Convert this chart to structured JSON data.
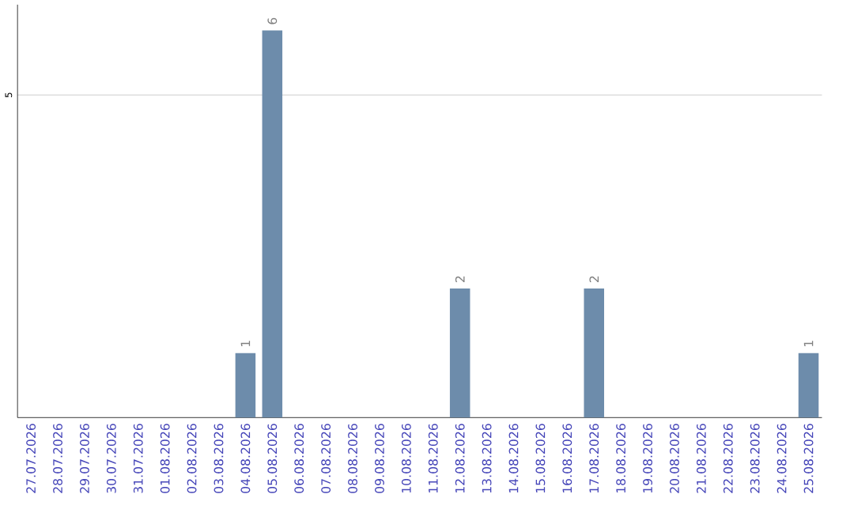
{
  "chart_data": {
    "type": "bar",
    "categories": [
      "27.07.2026",
      "28.07.2026",
      "29.07.2026",
      "30.07.2026",
      "31.07.2026",
      "01.08.2026",
      "02.08.2026",
      "03.08.2026",
      "04.08.2026",
      "05.08.2026",
      "06.08.2026",
      "07.08.2026",
      "08.08.2026",
      "09.08.2026",
      "10.08.2026",
      "11.08.2026",
      "12.08.2026",
      "13.08.2026",
      "14.08.2026",
      "15.08.2026",
      "16.08.2026",
      "17.08.2026",
      "18.08.2026",
      "19.08.2026",
      "20.08.2026",
      "21.08.2026",
      "22.08.2026",
      "23.08.2026",
      "24.08.2026",
      "25.08.2026"
    ],
    "values": [
      0,
      0,
      0,
      0,
      0,
      0,
      0,
      0,
      1,
      6,
      0,
      0,
      0,
      0,
      0,
      0,
      2,
      0,
      0,
      0,
      0,
      2,
      0,
      0,
      0,
      0,
      0,
      0,
      0,
      1
    ],
    "value_labels": [
      null,
      null,
      null,
      null,
      null,
      null,
      null,
      null,
      "1",
      "6",
      null,
      null,
      null,
      null,
      null,
      null,
      "2",
      null,
      null,
      null,
      null,
      "2",
      null,
      null,
      null,
      null,
      null,
      null,
      null,
      "1"
    ],
    "color": "#6d8cab",
    "ylim": [
      0,
      6.4
    ],
    "yticks": [
      5
    ],
    "grid": "y"
  }
}
